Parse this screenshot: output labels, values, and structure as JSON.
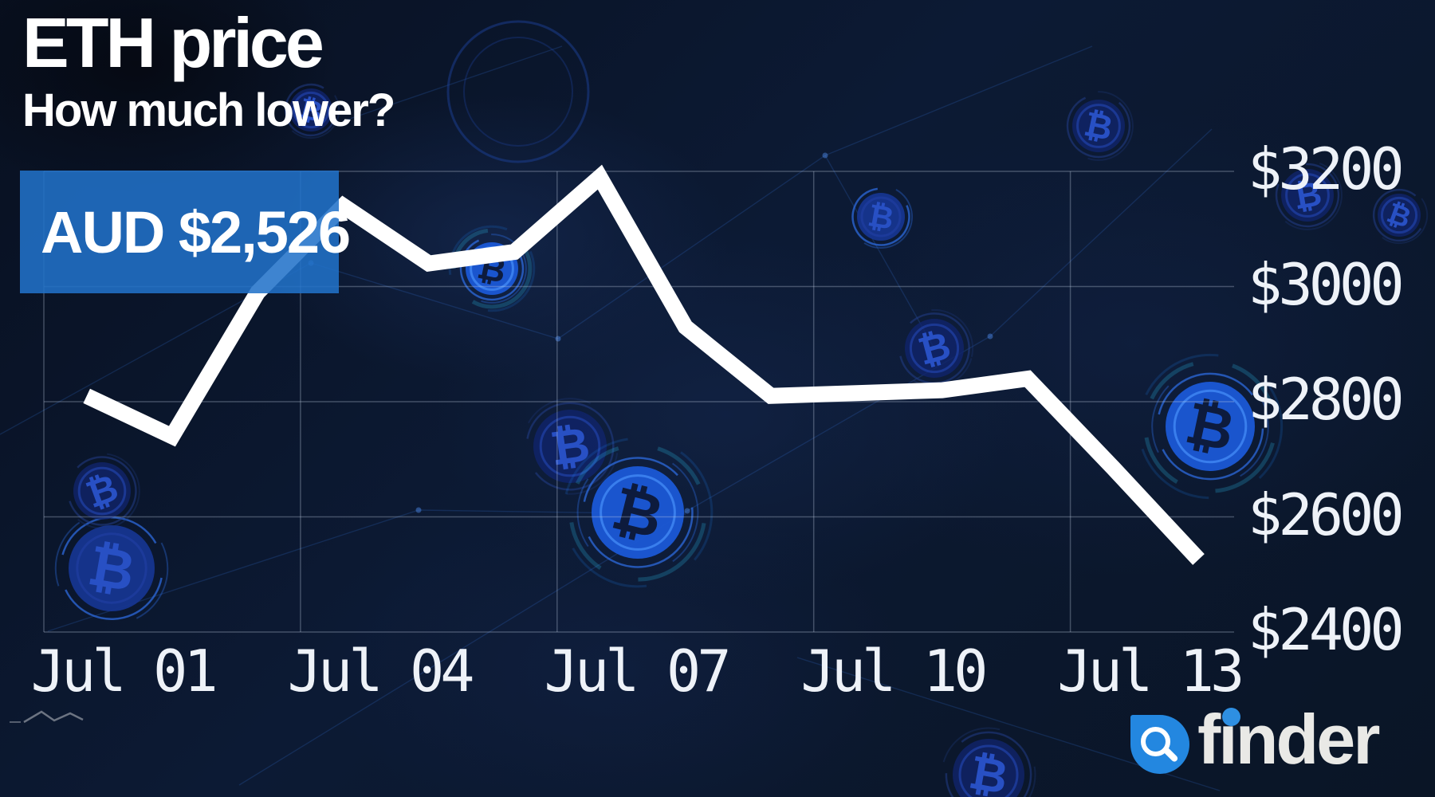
{
  "header": {
    "title": "ETH price",
    "subtitle": "How much lower?"
  },
  "price_badge": {
    "label": "AUD $2,526",
    "color": "#2172c9"
  },
  "chart_data": {
    "type": "line",
    "title": "ETH price (AUD)",
    "currency": "AUD",
    "x": [
      "Jul 01",
      "Jul 02",
      "Jul 03",
      "Jul 04",
      "Jul 05",
      "Jul 06",
      "Jul 07",
      "Jul 08",
      "Jul 09",
      "Jul 10",
      "Jul 11",
      "Jul 12",
      "Jul 13",
      "Jul 14"
    ],
    "values": [
      2810,
      2740,
      2990,
      3140,
      3040,
      3060,
      3190,
      2930,
      2810,
      2815,
      2820,
      2840,
      2685,
      2526
    ],
    "x_tick_labels": [
      "Jul 01",
      "Jul 04",
      "Jul 07",
      "Jul 10",
      "Jul 13"
    ],
    "y_tick_labels": [
      "$3200",
      "$3000",
      "$2800",
      "$2600",
      "$2400"
    ],
    "y_tick_values": [
      3200,
      3000,
      2800,
      2600,
      2400
    ],
    "ylim": [
      2400,
      3200
    ],
    "grid": true,
    "line_color": "#ffffff",
    "last_value": 2526,
    "legend": "none"
  },
  "branding": {
    "logo_text": "finder",
    "logo_badge_color": "#2387e0",
    "wordmark_color": "#e9e9e6"
  },
  "icons": {
    "bitcoin_symbol": "₿",
    "search_icon": "magnifying-glass"
  },
  "colors": {
    "background": "#0a1527",
    "grid": "rgba(200,212,232,0.3)",
    "accent_blue": "#1b58d6",
    "glow_cyan": "#2fc8f8",
    "text": "#ffffff"
  }
}
